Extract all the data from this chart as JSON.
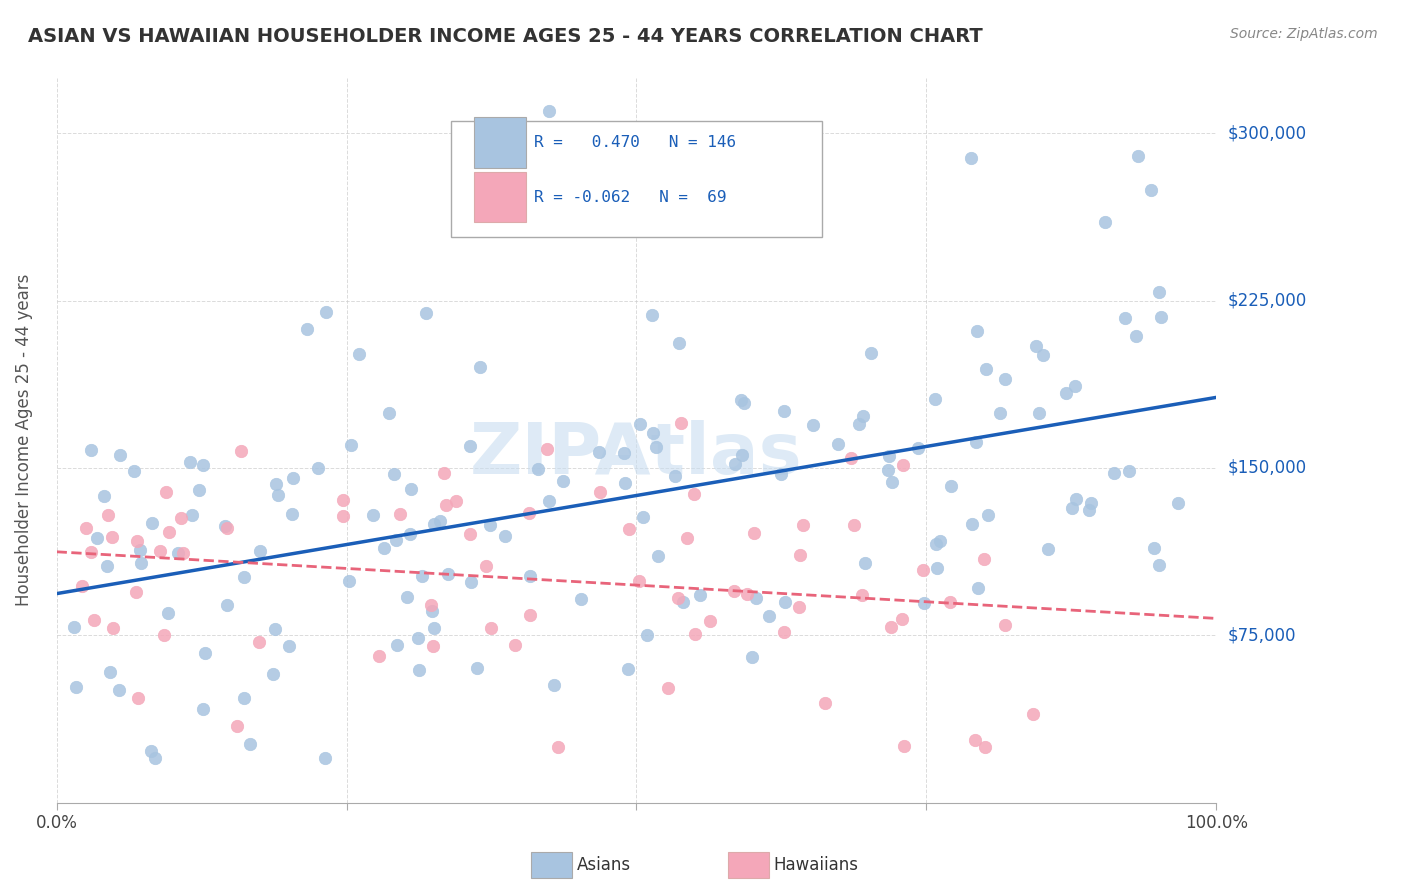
{
  "title": "ASIAN VS HAWAIIAN HOUSEHOLDER INCOME AGES 25 - 44 YEARS CORRELATION CHART",
  "source": "Source: ZipAtlas.com",
  "xlabel": "",
  "ylabel": "Householder Income Ages 25 - 44 years",
  "xlim": [
    0,
    1
  ],
  "ylim": [
    0,
    325000
  ],
  "yticks": [
    75000,
    150000,
    225000,
    300000
  ],
  "ytick_labels": [
    "$75,000",
    "$150,000",
    "$225,000",
    "$300,000"
  ],
  "xticks": [
    0,
    0.25,
    0.5,
    0.75,
    1.0
  ],
  "xtick_labels": [
    "0.0%",
    "",
    "",
    "",
    "100.0%"
  ],
  "asian_R": 0.47,
  "asian_N": 146,
  "hawaiian_R": -0.062,
  "hawaiian_N": 69,
  "asian_color": "#a8c4e0",
  "hawaiian_color": "#f4a7b9",
  "asian_line_color": "#1a5eb8",
  "hawaiian_line_color": "#e8647a",
  "watermark_text": "ZIPAtlas",
  "watermark_color": "#c8ddf0",
  "background_color": "#ffffff",
  "grid_color": "#cccccc",
  "legend_box_color": "#f8f8f8",
  "title_color": "#333333",
  "source_color": "#888888",
  "right_label_color": "#1a5eb8",
  "axis_label_color": "#555555"
}
